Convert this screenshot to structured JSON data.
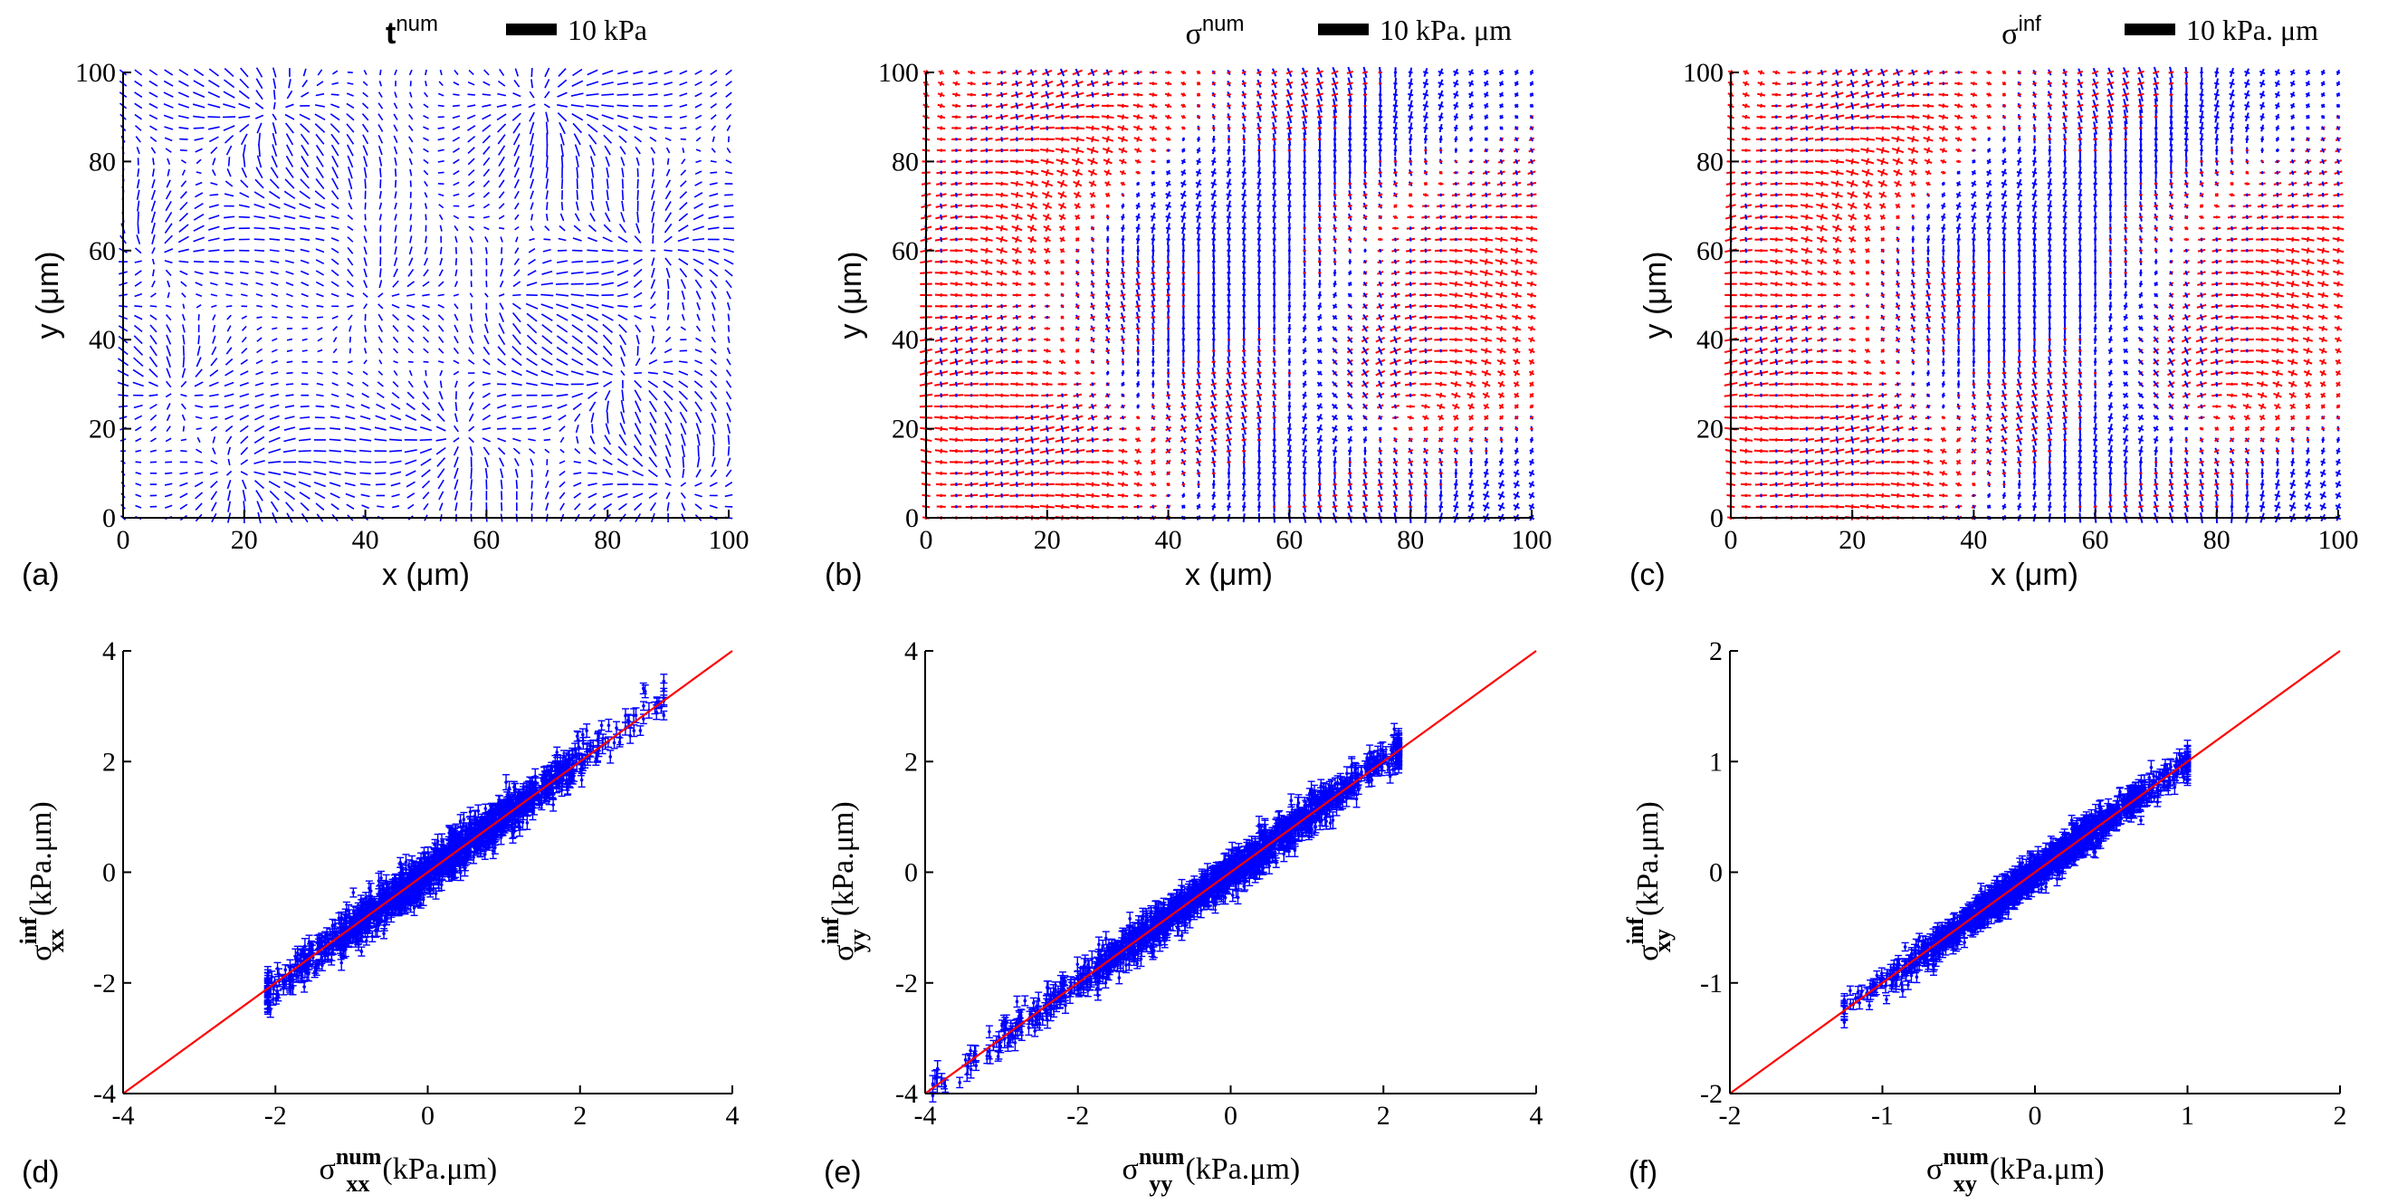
{
  "colors": {
    "axis": "#000000",
    "quiver_blue": "#0000ff",
    "quiver_red": "#ff0000",
    "scatter_point": "#0000ff",
    "error_bar": "#0000ff",
    "identity_line": "#ff0000"
  },
  "chart_data": [
    {
      "type": "quiver",
      "panel_label": "(a)",
      "title": "t",
      "title_superscript": "num",
      "scale_bar_label": "10 kPa",
      "xlabel": "x (μm)",
      "ylabel": "y (μm)",
      "xlim": [
        0,
        100
      ],
      "ylim": [
        0,
        100
      ],
      "xticks": [
        0,
        20,
        40,
        60,
        80,
        100
      ],
      "yticks": [
        0,
        20,
        40,
        60,
        80,
        100
      ],
      "xtick_labels": [
        "0",
        "20",
        "40",
        "60",
        "80",
        "100"
      ],
      "ytick_labels": [
        "0",
        "20",
        "40",
        "60",
        "80",
        "100"
      ],
      "field": "traction",
      "grid_spacing": 2.5
    },
    {
      "type": "quiver",
      "panel_label": "(b)",
      "title": "σ",
      "title_superscript": "num",
      "scale_bar_label": "10 kPa. μm",
      "xlabel": "x (μm)",
      "ylabel": "y (μm)",
      "xlim": [
        0,
        100
      ],
      "ylim": [
        0,
        100
      ],
      "xticks": [
        0,
        20,
        40,
        60,
        80,
        100
      ],
      "yticks": [
        0,
        20,
        40,
        60,
        80,
        100
      ],
      "xtick_labels": [
        "0",
        "20",
        "40",
        "60",
        "80",
        "100"
      ],
      "ytick_labels": [
        "0",
        "20",
        "40",
        "60",
        "80",
        "100"
      ],
      "field": "principal_stress",
      "grid_spacing": 2.5
    },
    {
      "type": "quiver",
      "panel_label": "(c)",
      "title": "σ",
      "title_superscript": "inf",
      "scale_bar_label": "10 kPa. μm",
      "xlabel": "x (μm)",
      "ylabel": "y (μm)",
      "xlim": [
        0,
        100
      ],
      "ylim": [
        0,
        100
      ],
      "xticks": [
        0,
        20,
        40,
        60,
        80,
        100
      ],
      "yticks": [
        0,
        20,
        40,
        60,
        80,
        100
      ],
      "xtick_labels": [
        "0",
        "20",
        "40",
        "60",
        "80",
        "100"
      ],
      "ytick_labels": [
        "0",
        "20",
        "40",
        "60",
        "80",
        "100"
      ],
      "field": "principal_stress",
      "grid_spacing": 2.5
    },
    {
      "type": "scatter",
      "panel_label": "(d)",
      "xlabel_base": "σ",
      "xlabel_sup": "num",
      "xlabel_sub": "xx",
      "xlabel_units": "(kPa.μm)",
      "ylabel_base": "σ",
      "ylabel_sup": "inf",
      "ylabel_sub": "xx",
      "ylabel_units": "(kPa.μm)",
      "xlim": [
        -4,
        4
      ],
      "ylim": [
        -4,
        4
      ],
      "xticks": [
        -4,
        -2,
        0,
        2,
        4
      ],
      "yticks": [
        -4,
        -2,
        0,
        2,
        4
      ],
      "xtick_labels": [
        "-4",
        "-2",
        "0",
        "2",
        "4"
      ],
      "ytick_labels": [
        "-4",
        "-2",
        "0",
        "2",
        "4"
      ],
      "x_range": [
        -2.1,
        3.1
      ],
      "slope": 1.02,
      "spread": 0.18,
      "error_bar": 0.11,
      "n_points": 1400,
      "line": {
        "x": [
          -4,
          4
        ],
        "y": [
          -4,
          4
        ]
      }
    },
    {
      "type": "scatter",
      "panel_label": "(e)",
      "xlabel_base": "σ",
      "xlabel_sup": "num",
      "xlabel_sub": "yy",
      "xlabel_units": "(kPa.μm)",
      "ylabel_base": "σ",
      "ylabel_sup": "inf",
      "ylabel_sub": "yy",
      "ylabel_units": "(kPa.μm)",
      "xlim": [
        -4,
        4
      ],
      "ylim": [
        -4,
        4
      ],
      "xticks": [
        -4,
        -2,
        0,
        2,
        4
      ],
      "yticks": [
        -4,
        -2,
        0,
        2,
        4
      ],
      "xtick_labels": [
        "-4",
        "-2",
        "0",
        "2",
        "4"
      ],
      "ytick_labels": [
        "-4",
        "-2",
        "0",
        "2",
        "4"
      ],
      "x_range": [
        -3.9,
        2.2
      ],
      "slope": 1.0,
      "spread": 0.16,
      "error_bar": 0.12,
      "n_points": 1400,
      "line": {
        "x": [
          -4,
          4
        ],
        "y": [
          -4,
          4
        ]
      }
    },
    {
      "type": "scatter",
      "panel_label": "(f)",
      "xlabel_base": "σ",
      "xlabel_sup": "num",
      "xlabel_sub": "xy",
      "xlabel_units": "(kPa.μm)",
      "ylabel_base": "σ",
      "ylabel_sup": "inf",
      "ylabel_sub": "xy",
      "ylabel_units": "(kPa.μm)",
      "xlim": [
        -2,
        2
      ],
      "ylim": [
        -2,
        2
      ],
      "xticks": [
        -2,
        -1,
        0,
        1,
        2
      ],
      "yticks": [
        -2,
        -1,
        0,
        1,
        2
      ],
      "xtick_labels": [
        "-2",
        "-1",
        "0",
        "1",
        "2"
      ],
      "ytick_labels": [
        "-2",
        "-1",
        "0",
        "1",
        "2"
      ],
      "x_range": [
        -1.25,
        1.0
      ],
      "slope": 1.0,
      "spread": 0.07,
      "error_bar": 0.05,
      "n_points": 1400,
      "line": {
        "x": [
          -2,
          2
        ],
        "y": [
          -2,
          2
        ]
      }
    }
  ]
}
